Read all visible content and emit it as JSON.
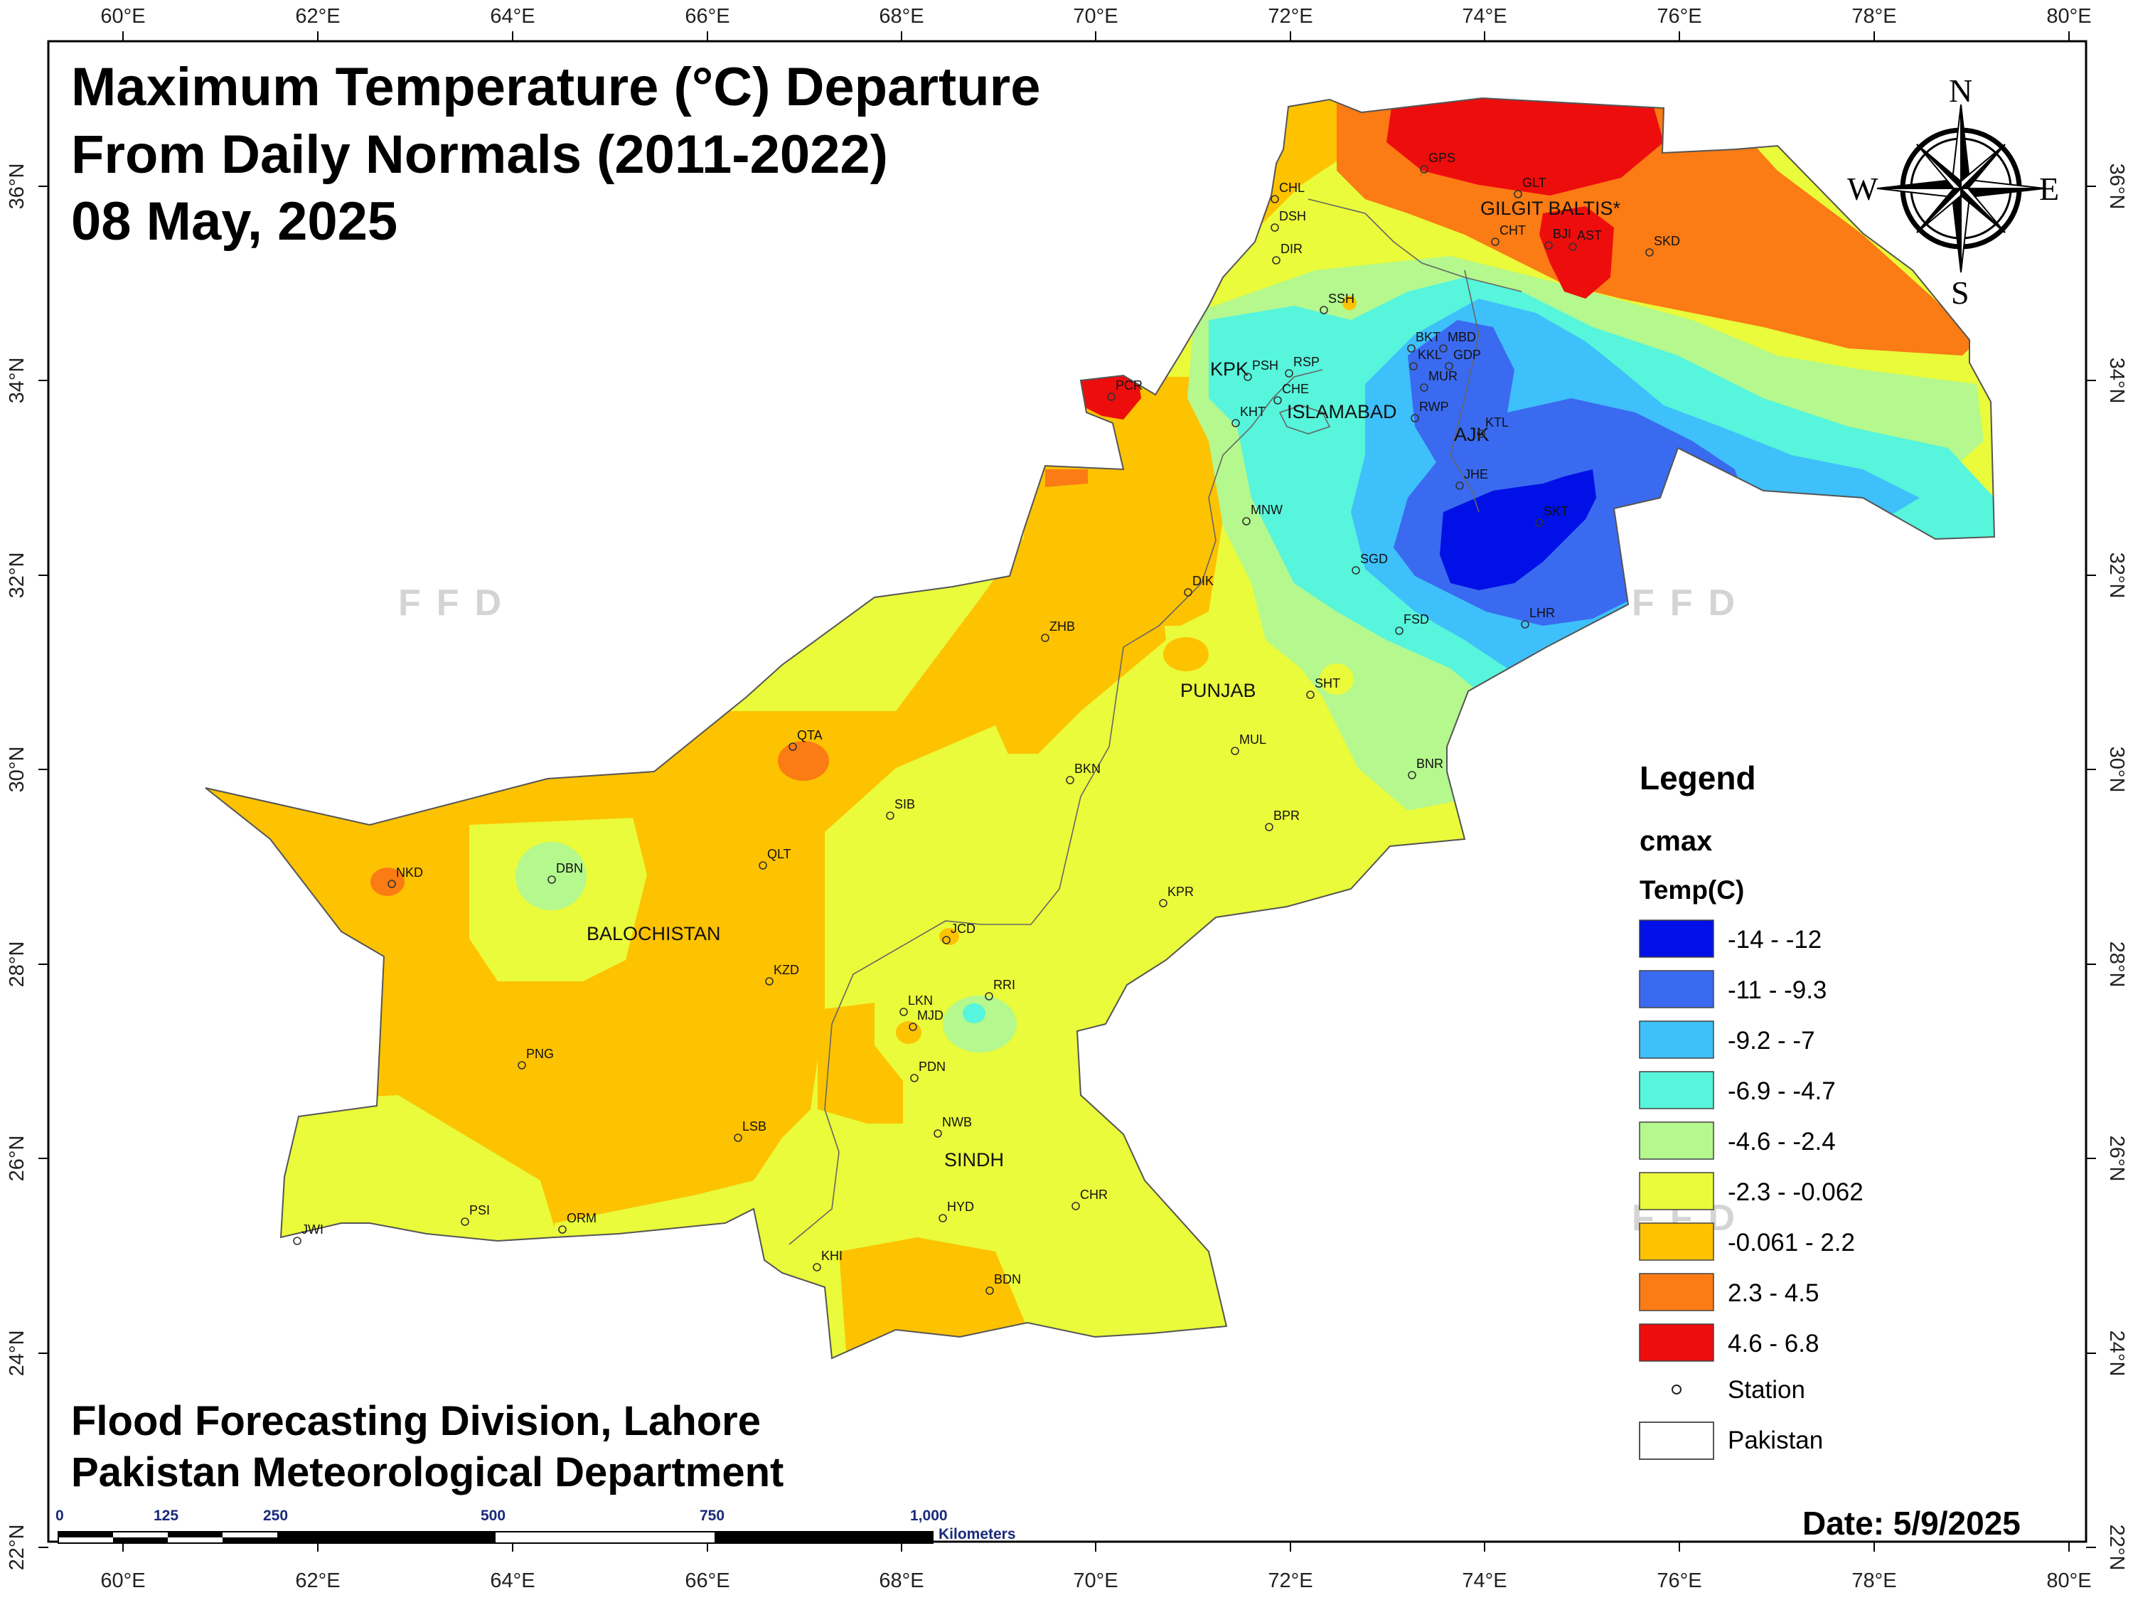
{
  "title": {
    "line1": "Maximum Temperature (°C) Departure",
    "line2": "From Daily Normals (2011-2022)",
    "line3": "08 May, 2025"
  },
  "credits": {
    "line1": "Flood Forecasting Division, Lahore",
    "line2": "Pakistan Meteorological Department"
  },
  "date_label": "Date: 5/9/2025",
  "watermark": "FFD",
  "axes": {
    "longitudes": [
      "60°E",
      "62°E",
      "64°E",
      "66°E",
      "68°E",
      "70°E",
      "72°E",
      "74°E",
      "76°E",
      "78°E",
      "80°E"
    ],
    "latitudes": [
      "36°N",
      "34°N",
      "32°N",
      "30°N",
      "28°N",
      "26°N",
      "24°N",
      "22°N"
    ]
  },
  "compass": {
    "n": "N",
    "e": "E",
    "s": "S",
    "w": "W"
  },
  "legend": {
    "title": "Legend",
    "layer": "cmax",
    "field": "Temp(C)",
    "classes": [
      {
        "label": "-14 - -12",
        "color": "#0010e6"
      },
      {
        "label": "-11 - -9.3",
        "color": "#3a6af0"
      },
      {
        "label": "-9.2 - -7",
        "color": "#3ec0fa"
      },
      {
        "label": "-6.9 - -4.7",
        "color": "#56f5dc"
      },
      {
        "label": "-4.6 - -2.4",
        "color": "#b4f88e"
      },
      {
        "label": "-2.3 - -0.062",
        "color": "#e9fb3a"
      },
      {
        "label": "-0.061 - 2.2",
        "color": "#fdc200"
      },
      {
        "label": "2.3 - 4.5",
        "color": "#fb7b14"
      },
      {
        "label": "4.6 - 6.8",
        "color": "#ee0d0d"
      }
    ],
    "station_label": "Station",
    "boundary_label": "Pakistan"
  },
  "scale_bar": {
    "ticks": [
      "0",
      "125",
      "250",
      "500",
      "750",
      "1,000"
    ],
    "unit": "Kilometers"
  },
  "regions": [
    "GILGIT BALTIS*",
    "KPK",
    "ISLAMABAD",
    "AJK",
    "PUNJAB",
    "BALOCHISTAN",
    "SINDH"
  ],
  "stations": [
    "GPS",
    "GLT",
    "CHT",
    "BJI",
    "AST",
    "SKD",
    "CHL",
    "DSH",
    "DIR",
    "SSH",
    "BKT",
    "MBD",
    "KKL",
    "GDP",
    "PSH",
    "RSP",
    "MUR",
    "CHE",
    "RWP",
    "KHT",
    "KTL",
    "PCR",
    "JHE",
    "MNW",
    "SKT",
    "SGD",
    "DIK",
    "LHR",
    "FSD",
    "ZHB",
    "SHT",
    "QTA",
    "MUL",
    "BNR",
    "SIB",
    "BKN",
    "BPR",
    "DBN",
    "NKD",
    "QLT",
    "KPR",
    "JCD",
    "KZD",
    "RRI",
    "LKN",
    "MJD",
    "PDN",
    "PNG",
    "NWB",
    "LSB",
    "HYD",
    "CHR",
    "PSI",
    "ORM",
    "JWI",
    "KHI",
    "BDN"
  ]
}
